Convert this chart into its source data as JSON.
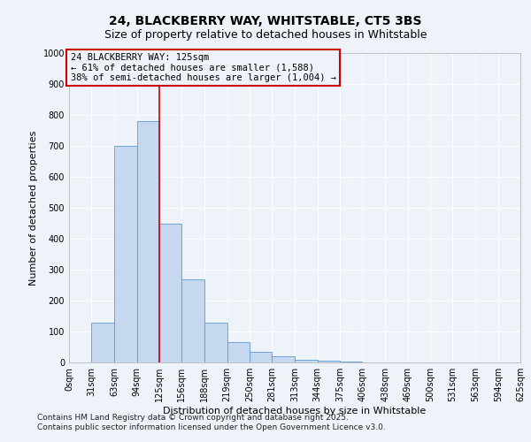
{
  "title_line1": "24, BLACKBERRY WAY, WHITSTABLE, CT5 3BS",
  "title_line2": "Size of property relative to detached houses in Whitstable",
  "xlabel": "Distribution of detached houses by size in Whitstable",
  "ylabel": "Number of detached properties",
  "bins": [
    0,
    31,
    63,
    94,
    125,
    156,
    188,
    219,
    250,
    281,
    313,
    344,
    375,
    406,
    438,
    469,
    500,
    531,
    563,
    594,
    625
  ],
  "bin_labels": [
    "0sqm",
    "31sqm",
    "63sqm",
    "94sqm",
    "125sqm",
    "156sqm",
    "188sqm",
    "219sqm",
    "250sqm",
    "281sqm",
    "313sqm",
    "344sqm",
    "375sqm",
    "406sqm",
    "438sqm",
    "469sqm",
    "500sqm",
    "531sqm",
    "563sqm",
    "594sqm",
    "625sqm"
  ],
  "values": [
    0,
    130,
    700,
    780,
    450,
    270,
    130,
    65,
    35,
    20,
    10,
    7,
    3,
    0,
    0,
    0,
    0,
    0,
    0,
    0
  ],
  "bar_color": "#c5d8f0",
  "bar_edge_color": "#5b9bd5",
  "vline_x": 125,
  "vline_color": "#cc0000",
  "annotation_line1": "24 BLACKBERRY WAY: 125sqm",
  "annotation_line2": "← 61% of detached houses are smaller (1,588)",
  "annotation_line3": "38% of semi-detached houses are larger (1,004) →",
  "annotation_box_color": "#cc0000",
  "ylim": [
    0,
    1000
  ],
  "yticks": [
    0,
    100,
    200,
    300,
    400,
    500,
    600,
    700,
    800,
    900,
    1000
  ],
  "footer_line1": "Contains HM Land Registry data © Crown copyright and database right 2025.",
  "footer_line2": "Contains public sector information licensed under the Open Government Licence v3.0.",
  "bg_color": "#eef2f9",
  "plot_bg_color": "#eef2f9",
  "grid_color": "#ffffff",
  "title_fontsize": 10,
  "subtitle_fontsize": 9,
  "label_fontsize": 8,
  "tick_fontsize": 7,
  "annotation_fontsize": 7.5,
  "footer_fontsize": 6.5
}
